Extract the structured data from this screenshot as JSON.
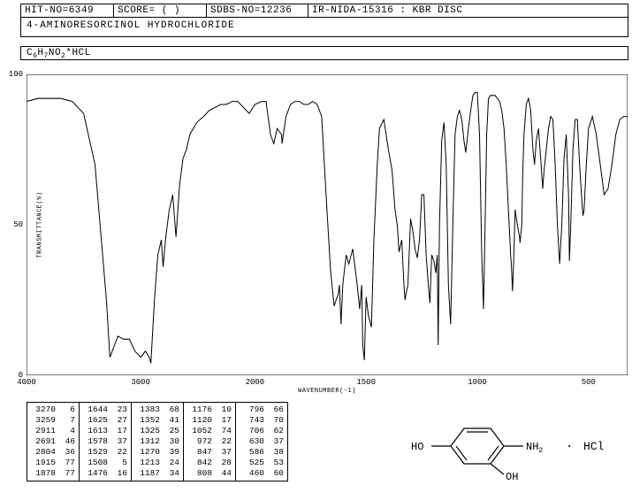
{
  "header": {
    "hit_no": "HIT-NO=6349",
    "score": "SCORE=  (  )",
    "sdbs_no": "SDBS-NO=12236",
    "ir_info": "IR-NIDA-15316 : KBR DISC"
  },
  "title": "4-AMINORESORCINOL HYDROCHLORIDE",
  "formula_plain": "C6H7NO2*HCL",
  "chart": {
    "type": "line",
    "x_label": "WAVENUMBER(-1)",
    "y_label": "TRANSMITTANCE(%)",
    "xlim": [
      4000,
      400
    ],
    "ylim": [
      0,
      100
    ],
    "xticks": [
      4000,
      3000,
      2000,
      1500,
      1000,
      500
    ],
    "yticks": [
      0,
      50,
      100
    ],
    "line_color": "#000000",
    "background": "#ffffff",
    "axis_color": "#000000",
    "data": [
      [
        4000,
        91
      ],
      [
        3900,
        92
      ],
      [
        3800,
        92
      ],
      [
        3700,
        92
      ],
      [
        3600,
        91
      ],
      [
        3500,
        87
      ],
      [
        3400,
        70
      ],
      [
        3300,
        25
      ],
      [
        3270,
        6
      ],
      [
        3259,
        7
      ],
      [
        3230,
        10
      ],
      [
        3200,
        13
      ],
      [
        3150,
        12
      ],
      [
        3100,
        12
      ],
      [
        3050,
        8
      ],
      [
        3000,
        6
      ],
      [
        2960,
        8
      ],
      [
        2925,
        6
      ],
      [
        2911,
        4
      ],
      [
        2880,
        25
      ],
      [
        2850,
        40
      ],
      [
        2820,
        45
      ],
      [
        2804,
        36
      ],
      [
        2780,
        46
      ],
      [
        2750,
        55
      ],
      [
        2720,
        60
      ],
      [
        2691,
        46
      ],
      [
        2660,
        63
      ],
      [
        2630,
        72
      ],
      [
        2600,
        75
      ],
      [
        2570,
        80
      ],
      [
        2540,
        82
      ],
      [
        2510,
        84
      ],
      [
        2480,
        85
      ],
      [
        2450,
        86
      ],
      [
        2400,
        88
      ],
      [
        2350,
        89
      ],
      [
        2300,
        90
      ],
      [
        2250,
        90
      ],
      [
        2200,
        91
      ],
      [
        2150,
        91
      ],
      [
        2100,
        89
      ],
      [
        2050,
        87
      ],
      [
        2000,
        90
      ],
      [
        1970,
        91
      ],
      [
        1950,
        91
      ],
      [
        1930,
        80
      ],
      [
        1915,
        77
      ],
      [
        1900,
        82
      ],
      [
        1880,
        80
      ],
      [
        1878,
        77
      ],
      [
        1860,
        86
      ],
      [
        1840,
        90
      ],
      [
        1820,
        91
      ],
      [
        1800,
        91
      ],
      [
        1780,
        90
      ],
      [
        1760,
        90
      ],
      [
        1740,
        91
      ],
      [
        1720,
        90
      ],
      [
        1700,
        86
      ],
      [
        1680,
        60
      ],
      [
        1660,
        35
      ],
      [
        1644,
        23
      ],
      [
        1635,
        25
      ],
      [
        1625,
        27
      ],
      [
        1620,
        30
      ],
      [
        1613,
        17
      ],
      [
        1605,
        30
      ],
      [
        1590,
        40
      ],
      [
        1578,
        37
      ],
      [
        1560,
        42
      ],
      [
        1540,
        30
      ],
      [
        1529,
        22
      ],
      [
        1520,
        30
      ],
      [
        1515,
        10
      ],
      [
        1508,
        5
      ],
      [
        1500,
        26
      ],
      [
        1490,
        20
      ],
      [
        1476,
        16
      ],
      [
        1465,
        45
      ],
      [
        1450,
        70
      ],
      [
        1440,
        82
      ],
      [
        1420,
        85
      ],
      [
        1400,
        75
      ],
      [
        1383,
        68
      ],
      [
        1370,
        55
      ],
      [
        1360,
        50
      ],
      [
        1352,
        41
      ],
      [
        1340,
        45
      ],
      [
        1330,
        30
      ],
      [
        1325,
        25
      ],
      [
        1318,
        28
      ],
      [
        1312,
        30
      ],
      [
        1300,
        52
      ],
      [
        1290,
        48
      ],
      [
        1280,
        42
      ],
      [
        1270,
        39
      ],
      [
        1260,
        45
      ],
      [
        1250,
        60
      ],
      [
        1240,
        60
      ],
      [
        1230,
        40
      ],
      [
        1220,
        30
      ],
      [
        1213,
        24
      ],
      [
        1205,
        40
      ],
      [
        1195,
        38
      ],
      [
        1187,
        34
      ],
      [
        1180,
        40
      ],
      [
        1176,
        10
      ],
      [
        1170,
        50
      ],
      [
        1160,
        78
      ],
      [
        1150,
        84
      ],
      [
        1140,
        70
      ],
      [
        1130,
        30
      ],
      [
        1120,
        17
      ],
      [
        1110,
        50
      ],
      [
        1100,
        80
      ],
      [
        1090,
        86
      ],
      [
        1080,
        88
      ],
      [
        1070,
        85
      ],
      [
        1060,
        78
      ],
      [
        1052,
        74
      ],
      [
        1040,
        82
      ],
      [
        1030,
        88
      ],
      [
        1020,
        93
      ],
      [
        1010,
        94
      ],
      [
        1000,
        94
      ],
      [
        990,
        80
      ],
      [
        980,
        40
      ],
      [
        972,
        22
      ],
      [
        965,
        50
      ],
      [
        958,
        80
      ],
      [
        950,
        92
      ],
      [
        940,
        93
      ],
      [
        930,
        93
      ],
      [
        920,
        93
      ],
      [
        910,
        92
      ],
      [
        900,
        91
      ],
      [
        890,
        88
      ],
      [
        880,
        82
      ],
      [
        870,
        70
      ],
      [
        860,
        55
      ],
      [
        850,
        40
      ],
      [
        847,
        37
      ],
      [
        842,
        28
      ],
      [
        838,
        35
      ],
      [
        830,
        55
      ],
      [
        820,
        50
      ],
      [
        810,
        46
      ],
      [
        808,
        44
      ],
      [
        800,
        50
      ],
      [
        796,
        66
      ],
      [
        790,
        80
      ],
      [
        780,
        90
      ],
      [
        770,
        92
      ],
      [
        760,
        88
      ],
      [
        750,
        75
      ],
      [
        743,
        70
      ],
      [
        735,
        78
      ],
      [
        725,
        82
      ],
      [
        715,
        72
      ],
      [
        706,
        62
      ],
      [
        700,
        68
      ],
      [
        690,
        75
      ],
      [
        680,
        82
      ],
      [
        670,
        86
      ],
      [
        660,
        85
      ],
      [
        650,
        70
      ],
      [
        640,
        50
      ],
      [
        630,
        37
      ],
      [
        620,
        50
      ],
      [
        610,
        72
      ],
      [
        600,
        80
      ],
      [
        590,
        60
      ],
      [
        586,
        38
      ],
      [
        580,
        50
      ],
      [
        570,
        75
      ],
      [
        560,
        85
      ],
      [
        550,
        85
      ],
      [
        540,
        70
      ],
      [
        530,
        58
      ],
      [
        525,
        53
      ],
      [
        520,
        55
      ],
      [
        510,
        70
      ],
      [
        500,
        82
      ],
      [
        490,
        86
      ],
      [
        480,
        80
      ],
      [
        470,
        70
      ],
      [
        460,
        60
      ],
      [
        450,
        62
      ],
      [
        440,
        70
      ],
      [
        430,
        80
      ],
      [
        420,
        85
      ],
      [
        410,
        86
      ],
      [
        400,
        86
      ]
    ]
  },
  "peak_table": {
    "columns": [
      [
        [
          3270,
          6
        ],
        [
          3259,
          7
        ],
        [
          2911,
          4
        ],
        [
          2691,
          46
        ],
        [
          2804,
          36
        ],
        [
          1915,
          77
        ],
        [
          1878,
          77
        ]
      ],
      [
        [
          1644,
          23
        ],
        [
          1625,
          27
        ],
        [
          1613,
          17
        ],
        [
          1578,
          37
        ],
        [
          1529,
          22
        ],
        [
          1508,
          5
        ],
        [
          1476,
          16
        ]
      ],
      [
        [
          1383,
          68
        ],
        [
          1352,
          41
        ],
        [
          1325,
          25
        ],
        [
          1312,
          30
        ],
        [
          1270,
          39
        ],
        [
          1213,
          24
        ],
        [
          1187,
          34
        ]
      ],
      [
        [
          1176,
          10
        ],
        [
          1120,
          17
        ],
        [
          1052,
          74
        ],
        [
          972,
          22
        ],
        [
          847,
          37
        ],
        [
          842,
          28
        ],
        [
          808,
          44
        ]
      ],
      [
        [
          796,
          66
        ],
        [
          743,
          70
        ],
        [
          706,
          62
        ],
        [
          630,
          37
        ],
        [
          586,
          38
        ],
        [
          525,
          53
        ],
        [
          460,
          60
        ]
      ]
    ]
  },
  "molecule": {
    "labels": {
      "oh_left": "HO",
      "oh_bottom": "OH",
      "nh2": "NH2",
      "dot": "·",
      "hcl": "HCl"
    },
    "colors": {
      "bond": "#000000",
      "text": "#000000"
    }
  }
}
